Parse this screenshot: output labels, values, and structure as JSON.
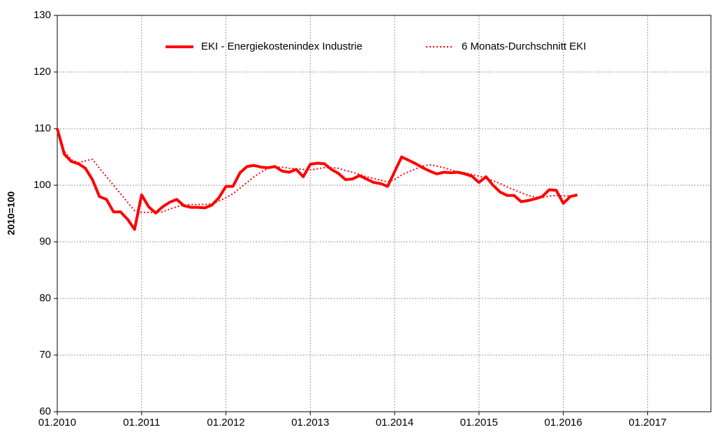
{
  "chart_data": {
    "type": "line",
    "y_label": "2010=100",
    "x": [
      "01.2010",
      "02.2010",
      "03.2010",
      "04.2010",
      "05.2010",
      "06.2010",
      "07.2010",
      "08.2010",
      "09.2010",
      "10.2010",
      "11.2010",
      "12.2010",
      "01.2011",
      "02.2011",
      "03.2011",
      "04.2011",
      "05.2011",
      "06.2011",
      "07.2011",
      "08.2011",
      "09.2011",
      "10.2011",
      "11.2011",
      "12.2011",
      "01.2012",
      "02.2012",
      "03.2012",
      "04.2012",
      "05.2012",
      "06.2012",
      "07.2012",
      "08.2012",
      "09.2012",
      "10.2012",
      "11.2012",
      "12.2012",
      "01.2013",
      "02.2013",
      "03.2013",
      "04.2013",
      "05.2013",
      "06.2013",
      "07.2013",
      "08.2013",
      "09.2013",
      "10.2013",
      "11.2013",
      "12.2013",
      "01.2014",
      "02.2014",
      "03.2014",
      "04.2014",
      "05.2014",
      "06.2014",
      "07.2014",
      "08.2014",
      "09.2014",
      "10.2014",
      "11.2014",
      "12.2014",
      "01.2015",
      "02.2015",
      "03.2015",
      "04.2015",
      "05.2015",
      "06.2015",
      "07.2015",
      "08.2015",
      "09.2015",
      "10.2015",
      "11.2015",
      "12.2015",
      "01.2016",
      "02.2016",
      "03.2016"
    ],
    "series": [
      {
        "name": "EKI - Energiekostenindex Industrie",
        "color": "#ff0000",
        "style": "solid",
        "values": [
          110,
          105.5,
          104.2,
          103.8,
          103,
          101,
          98,
          97.5,
          95.3,
          95.3,
          94,
          92.2,
          98.3,
          96.2,
          95.1,
          96.2,
          97,
          97.5,
          96.4,
          96.1,
          96.1,
          96,
          96.5,
          97.8,
          99.8,
          99.8,
          102.2,
          103.3,
          103.5,
          103.2,
          103.1,
          103.3,
          102.5,
          102.3,
          102.8,
          101.5,
          103.7,
          103.9,
          103.8,
          102.8,
          102.1,
          101,
          101.1,
          101.7,
          101.1,
          100.5,
          100.3,
          99.8,
          102.4,
          105,
          104.4,
          103.8,
          103.1,
          102.5,
          102,
          102.3,
          102.2,
          102.3,
          102,
          101.6,
          100.5,
          101.5,
          100,
          98.8,
          98.2,
          98.2,
          97.1,
          97.3,
          97.6,
          98,
          99.2,
          99.1,
          96.8,
          98,
          98.3
        ]
      },
      {
        "name": "6 Monats-Durchschnitt EKI",
        "color": "#ff0000",
        "style": "dotted",
        "values": [
          110,
          106,
          104.5,
          104,
          104.3,
          104.6,
          103,
          101.5,
          100,
          98.5,
          97,
          95.5,
          95.2,
          95.2,
          95.2,
          95.3,
          95.8,
          96.2,
          96.5,
          96.6,
          96.6,
          96.6,
          96.7,
          97.2,
          97.8,
          98.5,
          99.5,
          100.5,
          101.5,
          102.3,
          103,
          103.2,
          103.2,
          103,
          102.9,
          102.8,
          102.7,
          102.9,
          103.1,
          103.1,
          103,
          102.6,
          102.3,
          101.9,
          101.5,
          101.2,
          100.9,
          100.6,
          101,
          101.8,
          102.4,
          102.9,
          103.4,
          103.6,
          103.4,
          103.1,
          102.7,
          102.4,
          102.2,
          101.9,
          101.6,
          101.3,
          100.8,
          100.3,
          99.7,
          99.2,
          98.7,
          98.2,
          97.9,
          97.8,
          98.1,
          98.2,
          98.1,
          98.1,
          98.1
        ]
      }
    ],
    "xlim": [
      "01.2010",
      "10.2017"
    ],
    "xticks": [
      "01.2010",
      "01.2011",
      "01.2012",
      "01.2013",
      "01.2014",
      "01.2015",
      "01.2016",
      "01.2017"
    ],
    "ylim": [
      60,
      130
    ],
    "yticks": [
      60,
      70,
      80,
      90,
      100,
      110,
      120,
      130
    ],
    "grid": true,
    "legend": "top"
  }
}
